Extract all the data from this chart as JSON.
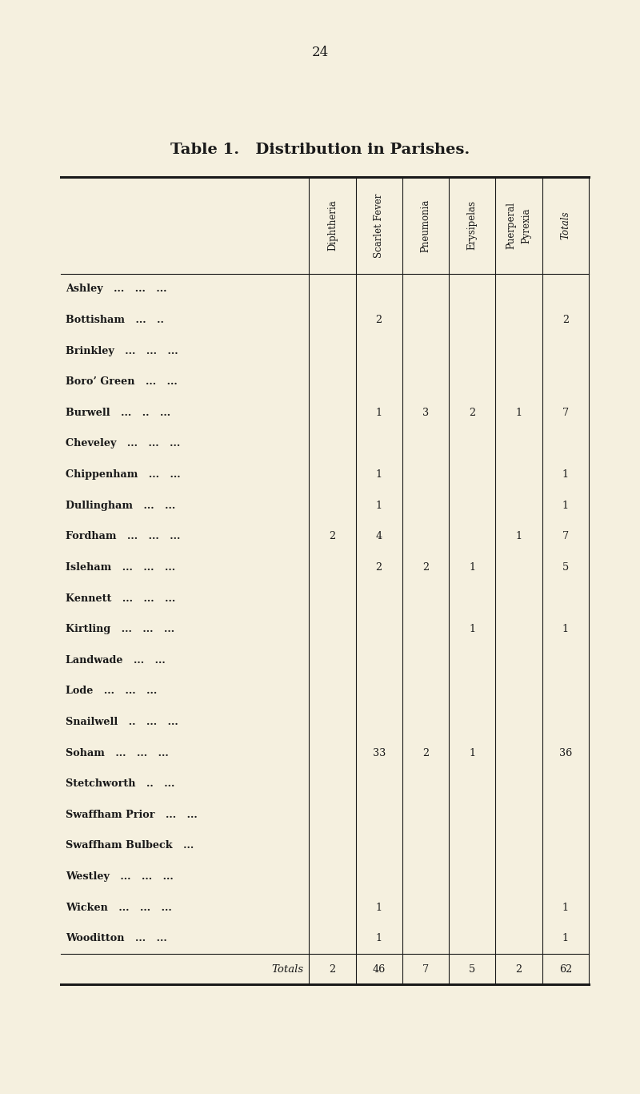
{
  "title": "Table 1.   Distribution in Parishes.",
  "page_number": "24",
  "background_color": "#f5f0df",
  "col_headers": [
    "Diphtheria",
    "Scarlet Fever",
    "Pneumonia",
    "Erysipelas",
    "Puerperal\nPyrexia",
    "Totals"
  ],
  "parishes": [
    [
      "Ashley",
      "...",
      "...",
      "..."
    ],
    [
      "Bottisham",
      "...",
      ".."
    ],
    [
      "Brinkley",
      "...",
      "...",
      "..."
    ],
    [
      "Boro’ Green",
      "...",
      "..."
    ],
    [
      "Burwell",
      "...",
      "..",
      "..."
    ],
    [
      "Cheveley",
      "...",
      "...",
      "..."
    ],
    [
      "Chippenham",
      "...",
      "..."
    ],
    [
      "Dullingham",
      "...",
      "..."
    ],
    [
      "Fordham",
      "...",
      "...",
      "..."
    ],
    [
      "Isleham",
      "...",
      "...",
      "..."
    ],
    [
      "Kennett",
      "...",
      "...",
      "..."
    ],
    [
      "Kirtling",
      "...",
      "...",
      "..."
    ],
    [
      "Landwade",
      "...",
      "..."
    ],
    [
      "Lode",
      "...",
      "...",
      "..."
    ],
    [
      "Snailwell",
      "..",
      "...",
      "..."
    ],
    [
      "Soham",
      "...",
      "...",
      "..."
    ],
    [
      "Stetchworth",
      "..",
      "..."
    ],
    [
      "Swaffham Prior",
      "...",
      "..."
    ],
    [
      "Swaffham Bulbeck",
      "..."
    ],
    [
      "Westley",
      "...",
      "...",
      "..."
    ],
    [
      "Wicken",
      "...",
      "...",
      "..."
    ],
    [
      "Wooditton",
      "...",
      "..."
    ]
  ],
  "data": [
    [
      "",
      "",
      "",
      "",
      "",
      ""
    ],
    [
      "",
      "2",
      "",
      "",
      "",
      "2"
    ],
    [
      "",
      "",
      "",
      "",
      "",
      ""
    ],
    [
      "",
      "",
      "",
      "",
      "",
      ""
    ],
    [
      "",
      "1",
      "3",
      "2",
      "1",
      "7"
    ],
    [
      "",
      "",
      "",
      "",
      "",
      ""
    ],
    [
      "",
      "1",
      "",
      "",
      "",
      "1"
    ],
    [
      "",
      "1",
      "",
      "",
      "",
      "1"
    ],
    [
      "2",
      "4",
      "",
      "",
      "1",
      "7"
    ],
    [
      "",
      "2",
      "2",
      "1",
      "",
      "5"
    ],
    [
      "",
      "",
      "",
      "",
      "",
      ""
    ],
    [
      "",
      "",
      "",
      "1",
      "",
      "1"
    ],
    [
      "",
      "",
      "",
      "",
      "",
      ""
    ],
    [
      "",
      "",
      "",
      "",
      "",
      ""
    ],
    [
      "",
      "",
      "",
      "",
      "",
      ""
    ],
    [
      "",
      "33",
      "2",
      "1",
      "",
      "36"
    ],
    [
      "",
      "",
      "",
      "",
      "",
      ""
    ],
    [
      "",
      "",
      "",
      "",
      "",
      ""
    ],
    [
      "",
      "",
      "",
      "",
      "",
      ""
    ],
    [
      "",
      "",
      "",
      "",
      "",
      ""
    ],
    [
      "",
      "1",
      "",
      "",
      "",
      "1"
    ],
    [
      "",
      "1",
      "",
      "",
      "",
      "1"
    ]
  ],
  "totals_row": [
    "2",
    "46",
    "7",
    "5",
    "2",
    "62"
  ],
  "totals_label": "Totals"
}
